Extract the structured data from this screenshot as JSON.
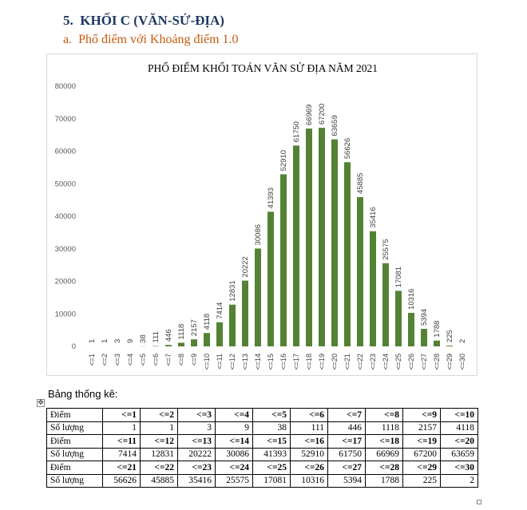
{
  "section": {
    "title": "5.  KHỐI C (VĂN-SỬ-ĐỊA)",
    "subtitle": "a.  Phổ điểm với Khoảng điểm 1.0"
  },
  "colors": {
    "bar": "#548235",
    "heading": "#1f3864",
    "subheading": "#c55a11"
  },
  "chart_data": {
    "type": "bar",
    "title": "PHỔ ĐIỂM KHỐI TOÁN VĂN SỬ ĐỊA NĂM 2021",
    "categories": [
      "<=1",
      "<=2",
      "<=3",
      "<=4",
      "<=5",
      "<=6",
      "<=7",
      "<=8",
      "<=9",
      "<=10",
      "<=11",
      "<=12",
      "<=13",
      "<=14",
      "<=15",
      "<=16",
      "<=17",
      "<=18",
      "<=19",
      "<=20",
      "<=21",
      "<=22",
      "<=23",
      "<=24",
      "<=25",
      "<=26",
      "<=27",
      "<=28",
      "<=29",
      "<=30"
    ],
    "values": [
      1,
      1,
      3,
      9,
      38,
      111,
      446,
      1118,
      2157,
      4118,
      7414,
      12831,
      20222,
      30086,
      41393,
      52910,
      61750,
      66969,
      67200,
      63659,
      56626,
      45885,
      35416,
      25575,
      17081,
      10316,
      5394,
      1788,
      225,
      2
    ],
    "ylim": [
      0,
      80000
    ],
    "yticks": [
      "0",
      "10000",
      "20000",
      "30000",
      "40000",
      "50000",
      "60000",
      "70000",
      "80000"
    ],
    "grid": false,
    "data_labels": true
  },
  "stats": {
    "label": "Bảng thống kê:",
    "move_icon": "✥",
    "rows": [
      [
        "Điểm",
        "<=1",
        "<=2",
        "<=3",
        "<=4",
        "<=5",
        "<=6",
        "<=7",
        "<=8",
        "<=9",
        "<=10"
      ],
      [
        "Số lượng",
        "1",
        "1",
        "3",
        "9",
        "38",
        "111",
        "446",
        "1118",
        "2157",
        "4118"
      ],
      [
        "Điểm",
        "<=11",
        "<=12",
        "<=13",
        "<=14",
        "<=15",
        "<=16",
        "<=17",
        "<=18",
        "<=19",
        "<=20"
      ],
      [
        "Số lượng",
        "7414",
        "12831",
        "20222",
        "30086",
        "41393",
        "52910",
        "61750",
        "66969",
        "67200",
        "63659"
      ],
      [
        "Điểm",
        "<=21",
        "<=22",
        "<=23",
        "<=24",
        "<=25",
        "<=26",
        "<=27",
        "<=28",
        "<=29",
        "<=30"
      ],
      [
        "Số lượng",
        "56626",
        "45885",
        "35416",
        "25575",
        "17081",
        "10316",
        "5394",
        "1788",
        "225",
        "2"
      ]
    ]
  }
}
